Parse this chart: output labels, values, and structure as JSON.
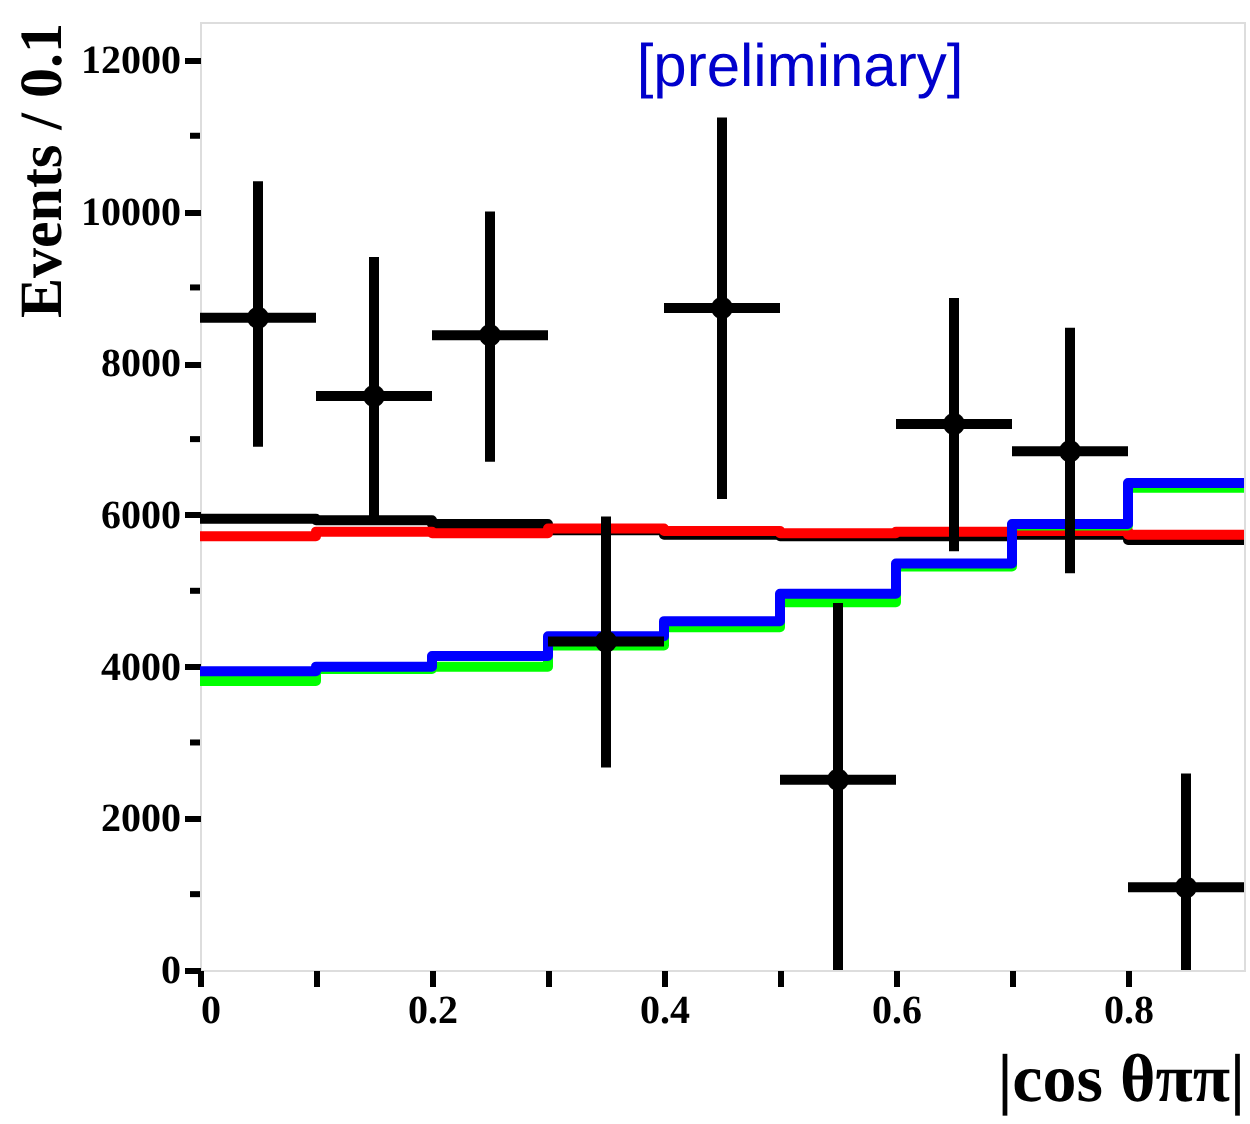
{
  "chart_data": {
    "type": "step",
    "xlabel": "|cos θππ|",
    "ylabel": "Events / 0.1",
    "annotations": [
      "[preliminary]"
    ],
    "xlim": [
      0,
      0.9
    ],
    "ylim": [
      0,
      12500
    ],
    "xticks": [
      0,
      {
        "value": 0.1,
        "label": null
      },
      0.2,
      {
        "value": 0.3,
        "label": null
      },
      0.4,
      {
        "value": 0.5,
        "label": null
      },
      0.6,
      {
        "value": 0.7,
        "label": null
      },
      0.8
    ],
    "yticks": [
      0,
      {
        "value": 1000,
        "label": null
      },
      2000,
      {
        "value": 3000,
        "label": null
      },
      4000,
      {
        "value": 5000,
        "label": null
      },
      6000,
      {
        "value": 7000,
        "label": null
      },
      8000,
      {
        "value": 9000,
        "label": null
      },
      10000,
      {
        "value": 11000,
        "label": null
      },
      12000
    ],
    "grid": false,
    "series": [
      {
        "color": "#000000",
        "x": [
          0,
          0.1,
          0.2,
          0.3,
          0.4,
          0.5,
          0.6,
          0.7,
          0.8,
          0.9
        ],
        "values": [
          5950,
          5930,
          5880,
          5800,
          5740,
          5720,
          5720,
          5740,
          5670,
          5670
        ]
      },
      {
        "color": "#ff0000",
        "x": [
          0,
          0.1,
          0.2,
          0.3,
          0.4,
          0.5,
          0.6,
          0.7,
          0.8,
          0.9
        ],
        "values": [
          5720,
          5780,
          5760,
          5820,
          5790,
          5760,
          5780,
          5790,
          5740,
          5740
        ]
      },
      {
        "color": "#00ff00",
        "x": [
          0,
          0.1,
          0.2,
          0.3,
          0.4,
          0.5,
          0.6,
          0.7,
          0.8,
          0.9
        ],
        "values": [
          3810,
          3970,
          4000,
          4280,
          4520,
          4850,
          5320,
          5860,
          6360,
          6360
        ]
      },
      {
        "color": "#0000ff",
        "x": [
          0,
          0.1,
          0.2,
          0.3,
          0.4,
          0.5,
          0.6,
          0.7,
          0.8,
          0.9
        ],
        "values": [
          3940,
          4000,
          4140,
          4400,
          4600,
          4960,
          5360,
          5880,
          6420,
          6420
        ]
      },
      {
        "type": "scatter",
        "color": "#000000",
        "marker": "circle",
        "x": [
          0.05,
          0.15,
          0.25,
          0.35,
          0.45,
          0.55,
          0.65,
          0.75,
          0.85
        ],
        "values": [
          8600,
          7570,
          8370,
          4330,
          8730,
          2510,
          7200,
          6840,
          1090
        ],
        "errors": [
          [
            6900,
            10400
          ],
          [
            5880,
            9400
          ],
          [
            6700,
            10000
          ],
          [
            2670,
            5980
          ],
          [
            6210,
            11240
          ],
          [
            0,
            4840
          ],
          [
            5520,
            8860
          ],
          [
            5230,
            8470
          ],
          [
            0,
            2590
          ]
        ],
        "xerrors": [
          0.05,
          0.05,
          0.05,
          0.05,
          0.05,
          0.05,
          0.05,
          0.05,
          0.05
        ]
      }
    ]
  }
}
